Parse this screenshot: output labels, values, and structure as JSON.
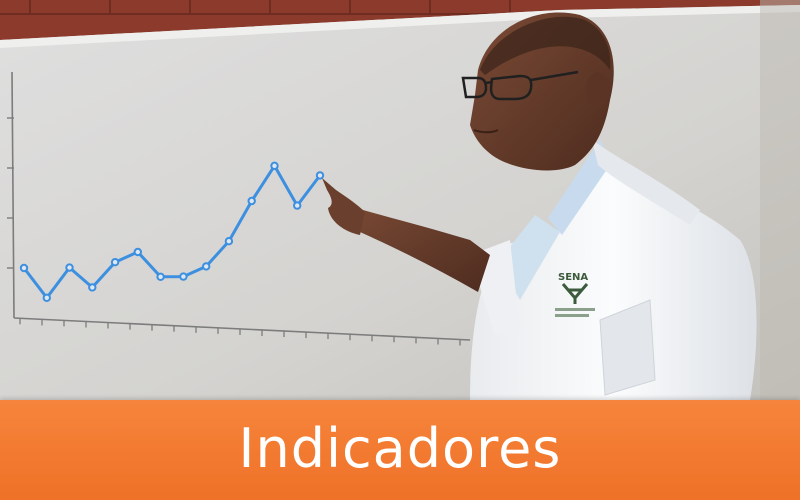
{
  "banner": {
    "title": "Indicadores",
    "color": "#f27a30"
  },
  "badge": {
    "logo_text": "SENA"
  },
  "chart_data": {
    "type": "line",
    "title": "",
    "xlabel": "",
    "ylabel": "",
    "x": [
      1,
      2,
      3,
      4,
      5,
      6,
      7,
      8,
      9,
      10,
      11,
      12,
      13,
      14
    ],
    "values": [
      1.0,
      0.4,
      1.0,
      0.6,
      1.1,
      1.3,
      0.8,
      0.8,
      1.0,
      1.5,
      2.3,
      3.0,
      2.2,
      2.8
    ],
    "line_color": "#3d8fe0",
    "grid": false
  }
}
